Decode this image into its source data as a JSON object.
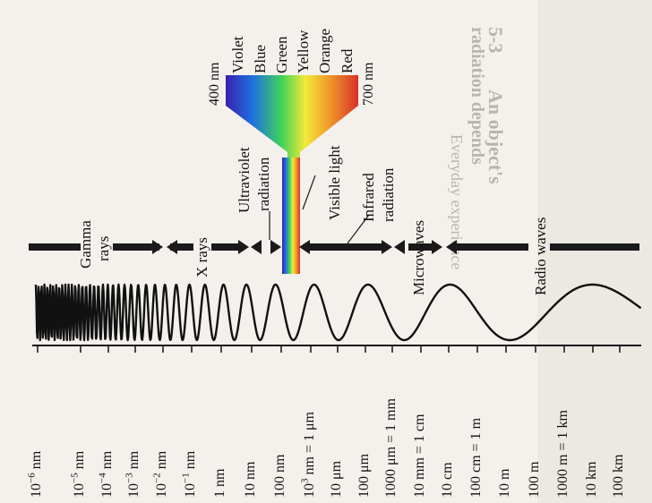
{
  "spectrum": {
    "colors": {
      "violet": "#3a1fb0",
      "blue": "#1f6fe0",
      "green": "#3fd25a",
      "yellow": "#f2ea3a",
      "orange": "#f09a2a",
      "red": "#d8322a",
      "ink": "#111111",
      "paper": "#f4f1ec"
    },
    "visible_colors": [
      "Violet",
      "Blue",
      "Green",
      "Yellow",
      "Orange",
      "Red"
    ],
    "visible_min": "400 nm",
    "visible_max": "700 nm"
  },
  "regions": {
    "gamma": [
      "Gamma",
      "rays"
    ],
    "xrays": "X rays",
    "ultraviolet": [
      "Ultraviolet",
      "radiation"
    ],
    "visible": "Visible light",
    "infrared": [
      "Infrared",
      "radiation"
    ],
    "microwaves": "Microwaves",
    "radio": "Radio waves"
  },
  "scale": [
    {
      "base": "10",
      "exp": "−6",
      "rest": " nm"
    },
    {
      "base": "10",
      "exp": "−5",
      "rest": " nm"
    },
    {
      "base": "10",
      "exp": "−4",
      "rest": " nm"
    },
    {
      "base": "10",
      "exp": "−3",
      "rest": " nm"
    },
    {
      "base": "10",
      "exp": "−2",
      "rest": " nm"
    },
    {
      "base": "10",
      "exp": "−1",
      "rest": " nm"
    },
    {
      "base": "",
      "exp": "",
      "rest": "1 nm"
    },
    {
      "base": "",
      "exp": "",
      "rest": "10 nm"
    },
    {
      "base": "",
      "exp": "",
      "rest": "100 nm"
    },
    {
      "base": "10",
      "exp": "3",
      "rest": " nm = 1 μm"
    },
    {
      "base": "",
      "exp": "",
      "rest": "10 μm"
    },
    {
      "base": "",
      "exp": "",
      "rest": "100 μm"
    },
    {
      "base": "",
      "exp": "",
      "rest": "1000 μm = 1 mm"
    },
    {
      "base": "",
      "exp": "",
      "rest": "10 mm = 1 cm"
    },
    {
      "base": "",
      "exp": "",
      "rest": "10 cm"
    },
    {
      "base": "",
      "exp": "",
      "rest": "100 cm = 1 m"
    },
    {
      "base": "",
      "exp": "",
      "rest": "10 m"
    },
    {
      "base": "",
      "exp": "",
      "rest": "100 m"
    },
    {
      "base": "",
      "exp": "",
      "rest": "1000 m = 1 km"
    },
    {
      "base": "",
      "exp": "",
      "rest": "10 km"
    },
    {
      "base": "",
      "exp": "",
      "rest": "100 km"
    }
  ],
  "background": {
    "heading": "5-3",
    "heading_text": "An object's",
    "line1": "radiation depends",
    "line2": "Everyday experience"
  }
}
